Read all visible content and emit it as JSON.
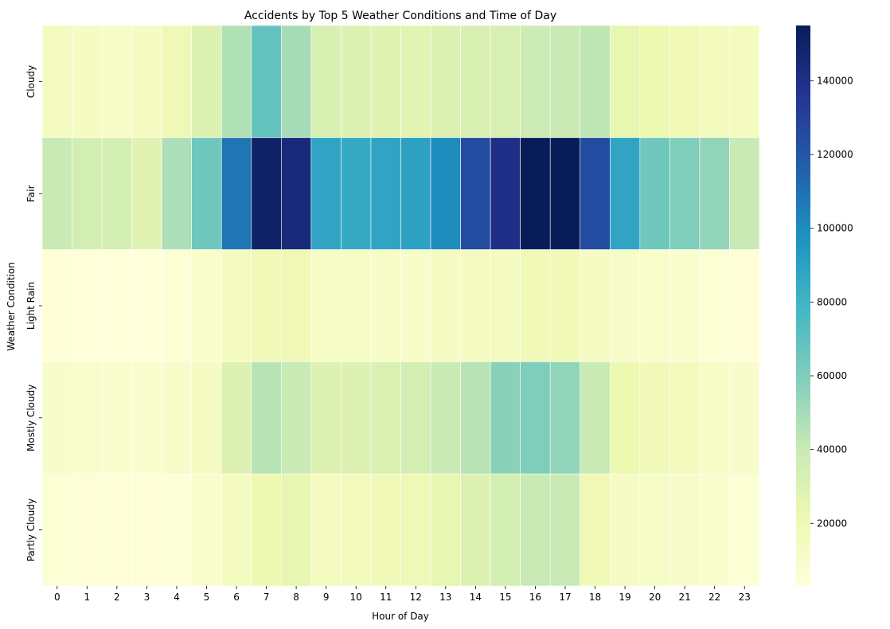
{
  "chart_data": {
    "type": "heatmap",
    "title": "Accidents by Top 5 Weather Conditions and Time of Day",
    "xlabel": "Hour of Day",
    "ylabel": "Weather Condition",
    "x": [
      "0",
      "1",
      "2",
      "3",
      "4",
      "5",
      "6",
      "7",
      "8",
      "9",
      "10",
      "11",
      "12",
      "13",
      "14",
      "15",
      "16",
      "17",
      "18",
      "19",
      "20",
      "21",
      "22",
      "23"
    ],
    "y": [
      "Cloudy",
      "Fair",
      "Light Rain",
      "Mostly Cloudy",
      "Partly Cloudy"
    ],
    "values": [
      [
        15000,
        13000,
        12000,
        13000,
        20000,
        30000,
        47000,
        68000,
        50000,
        32000,
        30000,
        28000,
        27000,
        30000,
        32000,
        33000,
        38000,
        40000,
        43000,
        25000,
        22000,
        20000,
        16000,
        15000
      ],
      [
        40000,
        35000,
        35000,
        28000,
        48000,
        65000,
        108000,
        150000,
        145000,
        88000,
        85000,
        88000,
        90000,
        100000,
        125000,
        140000,
        155000,
        155000,
        125000,
        88000,
        65000,
        60000,
        55000,
        40000
      ],
      [
        4000,
        3500,
        3000,
        3000,
        6000,
        9000,
        15000,
        18000,
        20000,
        12000,
        12000,
        11000,
        11000,
        13000,
        15000,
        15000,
        18000,
        18000,
        14000,
        11000,
        9000,
        8000,
        6000,
        4000
      ],
      [
        10000,
        9000,
        8000,
        8000,
        10000,
        13000,
        30000,
        45000,
        40000,
        30000,
        30000,
        31000,
        35000,
        40000,
        45000,
        57000,
        60000,
        55000,
        40000,
        22000,
        18000,
        16000,
        12000,
        10000
      ],
      [
        6000,
        5000,
        4500,
        4500,
        5000,
        9000,
        15000,
        22000,
        25000,
        15000,
        16000,
        18000,
        20000,
        25000,
        30000,
        35000,
        40000,
        40000,
        20000,
        14000,
        12000,
        10000,
        8000,
        6000
      ]
    ],
    "colorbar": {
      "min": 3000,
      "max": 155000,
      "ticks": [
        20000,
        40000,
        60000,
        80000,
        100000,
        120000,
        140000
      ],
      "tick_labels": [
        "20000",
        "40000",
        "60000",
        "80000",
        "100000",
        "120000",
        "140000"
      ]
    },
    "colormap": "YlGnBu",
    "grid": false,
    "cell_border_color": "#ffffff"
  }
}
